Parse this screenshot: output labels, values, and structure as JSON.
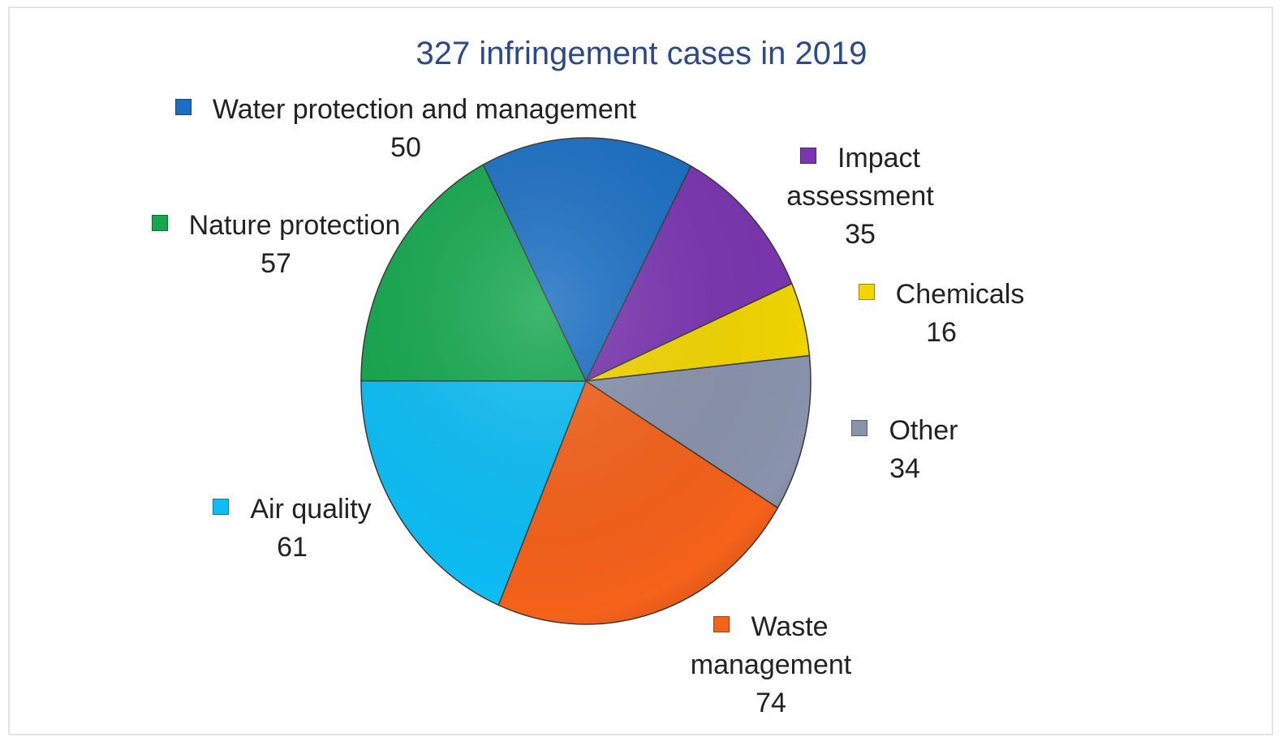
{
  "chart_data": {
    "type": "pie",
    "title": "327 infringement cases in 2019",
    "categories": [
      "Water protection and management",
      "Impact assessment",
      "Chemicals",
      "Other",
      "Waste management",
      "Air quality",
      "Nature protection"
    ],
    "values": [
      50,
      35,
      16,
      34,
      74,
      61,
      57
    ],
    "colors": [
      "#1a6fc4",
      "#7a35b0",
      "#f2d600",
      "#8a93ad",
      "#f5621a",
      "#0cbef5",
      "#14a84e"
    ]
  }
}
